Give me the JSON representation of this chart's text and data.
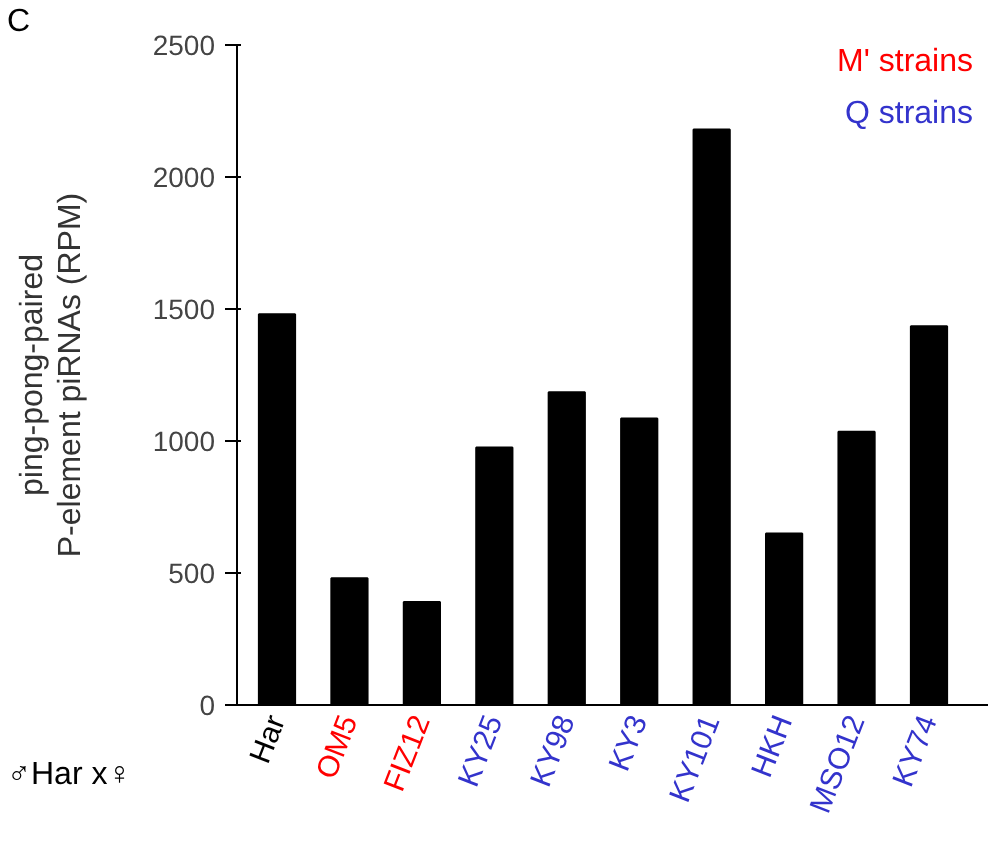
{
  "chart_data": {
    "type": "bar",
    "ylabel": "ping-pong-paired\nP-element piRNAs (RPM)",
    "categories": [
      "Har",
      "OM5",
      "FIZ12",
      "KY25",
      "KY98",
      "KY3",
      "KY101",
      "HKH",
      "MSO12",
      "KY74"
    ],
    "values": [
      1480,
      480,
      390,
      975,
      1185,
      1085,
      2180,
      650,
      1035,
      1435
    ],
    "color": "#000000",
    "ylim": [
      0,
      2500
    ],
    "yticks": [
      0,
      500,
      1000,
      1500,
      2000,
      2500
    ],
    "grid": false,
    "annotations": [
      "C",
      "♂Har x♀",
      "M' strains",
      "Q strains"
    ]
  }
}
